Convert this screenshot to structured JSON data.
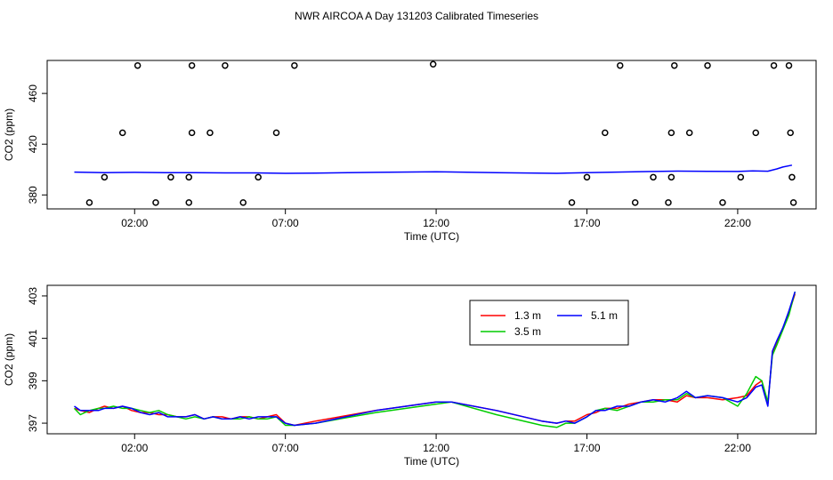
{
  "title": "NWR AIRCOA A  Day 131203  Calibrated Timeseries",
  "chart_data": [
    {
      "type": "scatter+line",
      "xlabel": "Time (UTC)",
      "ylabel": "CO2 (ppm)",
      "x_ticks": [
        {
          "x": 2,
          "label": "02:00"
        },
        {
          "x": 7,
          "label": "07:00"
        },
        {
          "x": 12,
          "label": "12:00"
        },
        {
          "x": 17,
          "label": "17:00"
        },
        {
          "x": 22,
          "label": "22:00"
        }
      ],
      "y_ticks": [
        {
          "y": 380,
          "label": "380"
        },
        {
          "y": 420,
          "label": "420"
        },
        {
          "y": 460,
          "label": "460"
        }
      ],
      "xlim": [
        -0.9,
        24.6
      ],
      "ylim": [
        369,
        486
      ],
      "grid": false,
      "series": [
        {
          "color": "#0000ff",
          "style": "line",
          "x": [
            0,
            1,
            2,
            3,
            4,
            5,
            6,
            7,
            8,
            10,
            12,
            14,
            16,
            17,
            18,
            19,
            20,
            21,
            22,
            22.5,
            23,
            23.3,
            23.5,
            23.8
          ],
          "y": [
            398,
            397.6,
            397.8,
            397.6,
            397.5,
            397.4,
            397.4,
            397,
            397.2,
            397.8,
            398.2,
            397.6,
            397,
            397.6,
            398,
            398.4,
            398.8,
            398.6,
            398.5,
            399,
            398.7,
            400.5,
            402,
            403.5
          ]
        },
        {
          "style": "circles",
          "x": [
            0.5,
            1,
            1.6,
            2.1,
            2.7,
            3.2,
            3.8,
            3.8,
            3.9,
            3.9,
            4.5,
            5,
            5.6,
            6.1,
            6.7,
            7.3,
            11.9,
            16.5,
            17,
            17.6,
            18.1,
            18.6,
            19.2,
            19.7,
            19.8,
            19.8,
            19.9,
            20.4,
            21,
            21.5,
            22.1,
            22.6,
            23.2,
            23.7,
            23.75,
            23.8,
            23.85
          ],
          "y": [
            374,
            394,
            429,
            482,
            374,
            394,
            374,
            394,
            429,
            482,
            429,
            482,
            374,
            394,
            429,
            482,
            483,
            374,
            394,
            429,
            482,
            374,
            394,
            374,
            394,
            429,
            482,
            429,
            482,
            374,
            394,
            429,
            482,
            482,
            429,
            394,
            374
          ]
        }
      ]
    },
    {
      "type": "line",
      "xlabel": "Time (UTC)",
      "ylabel": "CO2 (ppm)",
      "x_ticks": [
        {
          "x": 2,
          "label": "02:00"
        },
        {
          "x": 7,
          "label": "07:00"
        },
        {
          "x": 12,
          "label": "12:00"
        },
        {
          "x": 17,
          "label": "17:00"
        },
        {
          "x": 22,
          "label": "22:00"
        }
      ],
      "y_ticks": [
        {
          "y": 397,
          "label": "397"
        },
        {
          "y": 399,
          "label": "399"
        },
        {
          "y": 401,
          "label": "401"
        },
        {
          "y": 403,
          "label": "403"
        }
      ],
      "xlim": [
        -0.9,
        24.6
      ],
      "ylim": [
        396.5,
        403.5
      ],
      "grid": false,
      "legend": {
        "placement": "top-right",
        "entries": [
          {
            "label": "1.3 m",
            "color": "#ff0000",
            "slot": 0
          },
          {
            "label": "3.5 m",
            "color": "#00cc00",
            "slot": 1
          },
          {
            "label": "5.1 m",
            "color": "#0000ff",
            "slot": 2
          }
        ]
      },
      "series": [
        {
          "name": "1.3 m",
          "color": "#ff0000",
          "x": [
            0,
            0.2,
            0.5,
            0.8,
            1,
            1.3,
            1.6,
            1.9,
            2.2,
            2.5,
            2.8,
            3.1,
            3.4,
            3.7,
            4,
            4.3,
            4.6,
            4.9,
            5.2,
            5.5,
            5.8,
            6.1,
            6.4,
            6.7,
            7,
            7.3,
            8,
            10,
            12,
            12.5,
            14,
            15.5,
            16,
            16.3,
            16.6,
            17,
            17.3,
            17.6,
            18,
            18.4,
            18.8,
            19.2,
            19.6,
            20,
            20.3,
            20.6,
            21,
            21.5,
            22,
            22.3,
            22.6,
            22.8,
            23,
            23.15,
            23.3,
            23.5,
            23.7,
            23.9
          ],
          "y": [
            397.7,
            397.6,
            397.5,
            397.7,
            397.8,
            397.7,
            397.8,
            397.6,
            397.5,
            397.5,
            397.4,
            397.4,
            397.3,
            397.3,
            397.4,
            397.2,
            397.3,
            397.3,
            397.2,
            397.3,
            397.3,
            397.2,
            397.3,
            397.4,
            397.0,
            396.9,
            397.1,
            397.6,
            398.0,
            398.0,
            397.6,
            397.1,
            397.0,
            397.1,
            397.1,
            397.4,
            397.5,
            397.7,
            397.7,
            397.9,
            398.0,
            398.1,
            398.1,
            398.0,
            398.3,
            398.2,
            398.2,
            398.1,
            398.2,
            398.3,
            398.8,
            399.0,
            397.9,
            400.3,
            400.8,
            401.5,
            402.2,
            403.1
          ]
        },
        {
          "name": "3.5 m",
          "color": "#00cc00",
          "x": [
            0,
            0.2,
            0.5,
            0.8,
            1,
            1.3,
            1.6,
            1.9,
            2.2,
            2.5,
            2.8,
            3.1,
            3.4,
            3.7,
            4,
            4.3,
            4.6,
            4.9,
            5.2,
            5.5,
            5.8,
            6.1,
            6.4,
            6.7,
            7,
            7.3,
            8,
            10,
            12,
            12.5,
            14,
            15.5,
            16,
            16.3,
            16.6,
            17,
            17.3,
            17.6,
            18,
            18.4,
            18.8,
            19.2,
            19.6,
            20,
            20.3,
            20.6,
            21,
            21.5,
            22,
            22.3,
            22.6,
            22.8,
            23,
            23.15,
            23.3,
            23.5,
            23.7,
            23.9
          ],
          "y": [
            397.7,
            397.4,
            397.6,
            397.7,
            397.7,
            397.8,
            397.7,
            397.7,
            397.6,
            397.5,
            397.6,
            397.4,
            397.3,
            397.2,
            397.3,
            397.2,
            397.3,
            397.2,
            397.2,
            397.2,
            397.3,
            397.2,
            397.2,
            397.3,
            396.9,
            396.9,
            397.0,
            397.5,
            397.9,
            398.0,
            397.4,
            396.9,
            396.8,
            397.0,
            397.0,
            397.3,
            397.6,
            397.7,
            397.6,
            397.8,
            398.0,
            398.0,
            398.1,
            398.1,
            398.4,
            398.2,
            398.3,
            398.2,
            397.8,
            398.4,
            399.2,
            399.0,
            398.0,
            400.2,
            400.7,
            401.4,
            402.1,
            403.2
          ]
        },
        {
          "name": "5.1 m",
          "color": "#0000ff",
          "x": [
            0,
            0.2,
            0.5,
            0.8,
            1,
            1.3,
            1.6,
            1.9,
            2.2,
            2.5,
            2.8,
            3.1,
            3.4,
            3.7,
            4,
            4.3,
            4.6,
            4.9,
            5.2,
            5.5,
            5.8,
            6.1,
            6.4,
            6.7,
            7,
            7.3,
            8,
            10,
            12,
            12.5,
            14,
            15.5,
            16,
            16.3,
            16.6,
            17,
            17.3,
            17.6,
            18,
            18.4,
            18.8,
            19.2,
            19.6,
            20,
            20.3,
            20.6,
            21,
            21.5,
            22,
            22.3,
            22.6,
            22.8,
            23,
            23.15,
            23.3,
            23.5,
            23.7,
            23.9
          ],
          "y": [
            397.8,
            397.6,
            397.6,
            397.6,
            397.7,
            397.7,
            397.8,
            397.7,
            397.5,
            397.4,
            397.5,
            397.3,
            397.3,
            397.3,
            397.4,
            397.2,
            397.3,
            397.2,
            397.2,
            397.3,
            397.2,
            397.3,
            397.3,
            397.3,
            397.0,
            396.9,
            397.0,
            397.6,
            398.0,
            398.0,
            397.6,
            397.1,
            397.0,
            397.1,
            397.0,
            397.3,
            397.6,
            397.6,
            397.8,
            397.8,
            398.0,
            398.1,
            398.0,
            398.2,
            398.5,
            398.2,
            398.3,
            398.2,
            398.0,
            398.2,
            398.7,
            398.8,
            397.8,
            400.4,
            400.9,
            401.5,
            402.3,
            403.2
          ]
        }
      ]
    }
  ]
}
